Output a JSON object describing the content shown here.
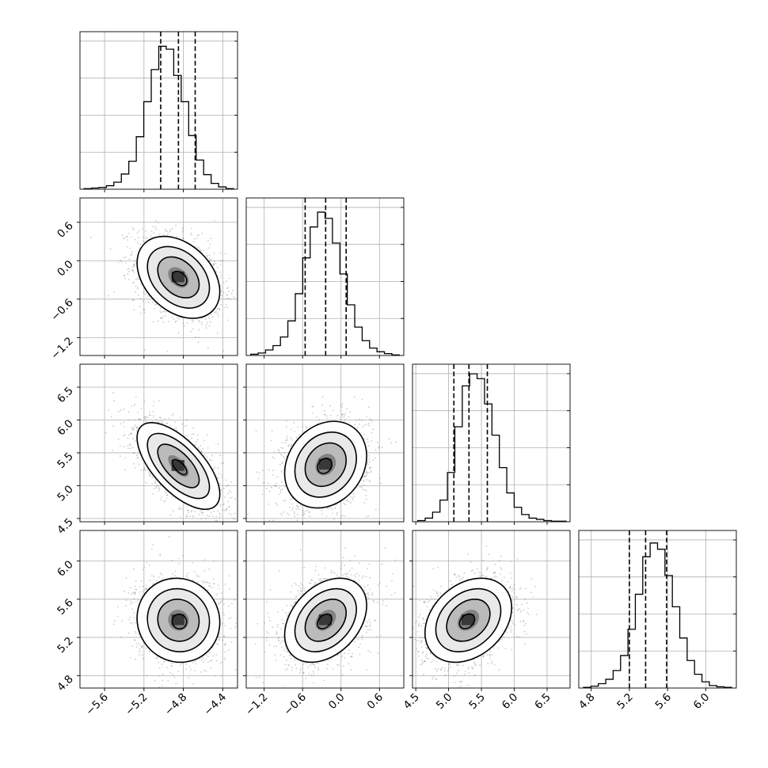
{
  "colors": {
    "background": "#ffffff",
    "ink": "#000000",
    "grid": "#b0b0b0",
    "scatter": "#6e6e6e"
  },
  "chart_data": {
    "type": "corner",
    "grid": true,
    "params": [
      {
        "range": [
          -5.85,
          -4.25
        ],
        "ticks": [
          "−5.6",
          "−5.2",
          "−4.8",
          "−4.4"
        ],
        "tick_values": [
          -5.6,
          -5.2,
          -4.8,
          -4.4
        ]
      },
      {
        "range": [
          -1.48,
          0.98
        ],
        "ticks": [
          "−1.2",
          "−0.6",
          "0.0",
          "0.6"
        ],
        "tick_values": [
          -1.2,
          -0.6,
          0.0,
          0.6
        ]
      },
      {
        "range": [
          4.45,
          6.85
        ],
        "ticks": [
          "4.5",
          "5.0",
          "5.5",
          "6.0",
          "6.5"
        ],
        "tick_values": [
          4.5,
          5.0,
          5.5,
          6.0,
          6.5
        ]
      },
      {
        "range": [
          4.67,
          6.32
        ],
        "ticks": [
          "4.8",
          "5.2",
          "5.6",
          "6.0"
        ],
        "tick_values": [
          4.8,
          5.2,
          5.6,
          6.0
        ]
      }
    ],
    "histograms": [
      {
        "bins": [
          -5.81,
          -4.29
        ],
        "counts": [
          1,
          2,
          3,
          6,
          12,
          26,
          48,
          90,
          150,
          205,
          245,
          240,
          195,
          150,
          92,
          50,
          25,
          10,
          4,
          1
        ],
        "ymax": 270,
        "quantiles": [
          -5.03,
          -4.85,
          -4.68
        ]
      },
      {
        "bins": [
          -1.41,
          0.91
        ],
        "counts": [
          2,
          4,
          9,
          16,
          30,
          56,
          100,
          158,
          208,
          232,
          222,
          182,
          132,
          82,
          46,
          24,
          12,
          6,
          3,
          1
        ],
        "ymax": 255,
        "quantiles": [
          -0.56,
          -0.24,
          0.08
        ]
      },
      {
        "bins": [
          4.53,
          6.79
        ],
        "counts": [
          2,
          6,
          16,
          36,
          82,
          158,
          226,
          246,
          238,
          196,
          144,
          90,
          48,
          24,
          12,
          6,
          4,
          2,
          1,
          1
        ],
        "ymax": 262,
        "quantiles": [
          5.08,
          5.31,
          5.59
        ]
      },
      {
        "bins": [
          4.72,
          6.27
        ],
        "counts": [
          1,
          3,
          7,
          14,
          28,
          52,
          94,
          150,
          210,
          232,
          222,
          180,
          130,
          80,
          44,
          22,
          10,
          4,
          2,
          1
        ],
        "ymax": 252,
        "quantiles": [
          5.2,
          5.37,
          5.59
        ]
      }
    ],
    "pairs": [
      {
        "row": 1,
        "col": 0,
        "mean": [
          -4.85,
          -0.26
        ],
        "sd": [
          0.21,
          0.32
        ],
        "rho": -0.35
      },
      {
        "row": 2,
        "col": 0,
        "mean": [
          -4.85,
          5.3
        ],
        "sd": [
          0.21,
          0.33
        ],
        "rho": -0.65
      },
      {
        "row": 2,
        "col": 1,
        "mean": [
          -0.24,
          5.32
        ],
        "sd": [
          0.32,
          0.33
        ],
        "rho": 0.2
      },
      {
        "row": 3,
        "col": 0,
        "mean": [
          -4.85,
          5.38
        ],
        "sd": [
          0.21,
          0.22
        ],
        "rho": -0.05
      },
      {
        "row": 3,
        "col": 1,
        "mean": [
          -0.24,
          5.38
        ],
        "sd": [
          0.32,
          0.22
        ],
        "rho": 0.35
      },
      {
        "row": 3,
        "col": 2,
        "mean": [
          5.3,
          5.38
        ],
        "sd": [
          0.33,
          0.22
        ],
        "rho": 0.3
      }
    ],
    "contour_levels": [
      0.5,
      1.0,
      1.5,
      2.0
    ],
    "contour_fills": [
      "#ffffff",
      "#e8e8e8",
      "#b8b8b8",
      "#808080",
      "#383838"
    ]
  }
}
